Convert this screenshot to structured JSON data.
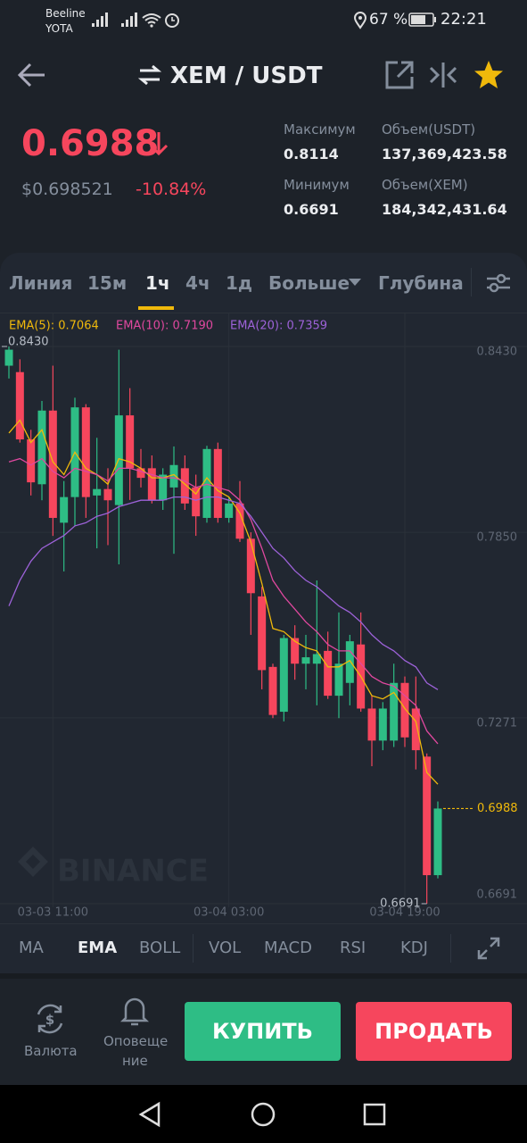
{
  "status": {
    "carrier1": "Beeline",
    "carrier2": "YOTA",
    "battery": "67 %",
    "time": "22:21"
  },
  "header": {
    "pair": "XEM / USDT"
  },
  "ticker": {
    "price": "0.6988",
    "usd": "$0.698521",
    "change": "-10.84%",
    "stats": [
      {
        "label": "Максимум",
        "value": "0.8114"
      },
      {
        "label": "Объем(USDT)",
        "value": "137,369,423.58"
      },
      {
        "label": "Минимум",
        "value": "0.6691"
      },
      {
        "label": "Объем(XEM)",
        "value": "184,342,431.64"
      }
    ]
  },
  "tabs": [
    "Линия",
    "15м",
    "1ч",
    "4ч",
    "1д",
    "Больше",
    "Глубина"
  ],
  "chart_data": {
    "type": "candlestick",
    "categories": [
      null,
      null,
      null,
      null,
      "03-03 11:00",
      null,
      null,
      null,
      null,
      null,
      null,
      null,
      null,
      null,
      null,
      null,
      null,
      null,
      null,
      null,
      "03-04 03:00",
      null,
      null,
      null,
      null,
      null,
      null,
      null,
      null,
      null,
      null,
      null,
      null,
      null,
      null,
      null,
      "03-04 19:00",
      null,
      null,
      null
    ],
    "open": [
      0.837,
      0.835,
      0.814,
      0.8,
      0.823,
      0.788,
      0.796,
      0.824,
      0.7965,
      0.7985,
      0.7935,
      0.8215,
      0.805,
      0.805,
      0.795,
      0.799,
      0.805,
      0.799,
      0.7895,
      0.811,
      0.7895,
      0.794,
      0.783,
      0.765,
      0.743,
      0.729,
      0.752,
      0.744,
      0.744,
      0.748,
      0.734,
      0.738,
      0.75,
      0.73,
      0.72,
      0.72,
      0.738,
      0.73,
      0.715,
      0.678
    ],
    "high": [
      0.843,
      0.839,
      0.817,
      0.826,
      0.837,
      0.801,
      0.827,
      0.825,
      0.8145,
      0.805,
      0.842,
      0.83,
      0.811,
      0.809,
      0.805,
      0.8118,
      0.809,
      0.803,
      0.812,
      0.813,
      0.796,
      0.801,
      0.785,
      0.768,
      0.744,
      0.753,
      0.756,
      0.753,
      0.77,
      0.754,
      0.76,
      0.753,
      0.76,
      0.734,
      0.732,
      0.744,
      0.74,
      0.74,
      0.716,
      0.701
    ],
    "low": [
      0.833,
      0.813,
      0.7965,
      0.795,
      0.7839,
      0.7728,
      0.787,
      0.7895,
      0.78,
      0.781,
      0.775,
      0.7951,
      0.799,
      0.794,
      0.792,
      0.7783,
      0.792,
      0.7839,
      0.788,
      0.788,
      0.788,
      0.782,
      0.753,
      0.736,
      0.727,
      0.726,
      0.739,
      0.736,
      0.731,
      0.733,
      0.727,
      0.731,
      0.729,
      0.712,
      0.717,
      0.718,
      0.718,
      0.711,
      0.6691,
      0.677
    ],
    "close": [
      0.842,
      0.814,
      0.8006,
      0.823,
      0.7895,
      0.796,
      0.824,
      0.796,
      0.7985,
      0.795,
      0.8215,
      0.805,
      0.802,
      0.795,
      0.803,
      0.806,
      0.794,
      0.79,
      0.811,
      0.7895,
      0.794,
      0.783,
      0.766,
      0.742,
      0.728,
      0.752,
      0.744,
      0.746,
      0.747,
      0.734,
      0.744,
      0.751,
      0.73,
      0.72,
      0.73,
      0.738,
      0.721,
      0.717,
      0.678,
      0.6988
    ],
    "up_color": "#2ebd85",
    "down_color": "#f6465d",
    "lines": [
      {
        "label": "EMA(5): 0.7064",
        "color": "#f0b90b",
        "values": [
          0.816,
          0.82,
          0.813,
          0.817,
          0.807,
          0.803,
          0.81,
          0.805,
          0.803,
          0.8,
          0.808,
          0.807,
          0.805,
          0.802,
          0.802,
          0.803,
          0.8,
          0.797,
          0.802,
          0.798,
          0.796,
          0.791,
          0.782,
          0.769,
          0.755,
          0.754,
          0.751,
          0.749,
          0.748,
          0.743,
          0.743,
          0.745,
          0.74,
          0.734,
          0.733,
          0.735,
          0.73,
          0.726,
          0.71,
          0.7064
        ]
      },
      {
        "label": "EMA(10): 0.7190",
        "color": "#e0489f",
        "values": [
          0.807,
          0.808,
          0.806,
          0.808,
          0.804,
          0.802,
          0.805,
          0.804,
          0.803,
          0.801,
          0.805,
          0.805,
          0.804,
          0.803,
          0.802,
          0.802,
          0.801,
          0.799,
          0.8,
          0.799,
          0.798,
          0.795,
          0.789,
          0.78,
          0.77,
          0.765,
          0.761,
          0.757,
          0.754,
          0.75,
          0.748,
          0.748,
          0.744,
          0.74,
          0.738,
          0.737,
          0.734,
          0.731,
          0.723,
          0.719
        ]
      },
      {
        "label": "EMA(20): 0.7359",
        "color": "#9d62d9",
        "values": [
          0.762,
          0.77,
          0.776,
          0.78,
          0.782,
          0.784,
          0.787,
          0.788,
          0.79,
          0.791,
          0.793,
          0.794,
          0.795,
          0.795,
          0.795,
          0.796,
          0.796,
          0.795,
          0.796,
          0.796,
          0.795,
          0.794,
          0.79,
          0.785,
          0.78,
          0.777,
          0.773,
          0.77,
          0.768,
          0.765,
          0.762,
          0.76,
          0.757,
          0.753,
          0.75,
          0.748,
          0.745,
          0.743,
          0.738,
          0.7359
        ]
      }
    ],
    "ylim": [
      0.6691,
      0.843
    ],
    "yticks": [
      {
        "value": 0.843,
        "label": "0.8430"
      },
      {
        "value": 0.785,
        "label": "0.7850"
      },
      0.7271,
      0.6691
    ],
    "grid": true,
    "high_marker": {
      "value": 0.843,
      "label": "0.8430"
    },
    "low_marker": 0.6691,
    "last_price": 0.6988,
    "last_price_color": "#f0b90b",
    "watermark": "BINANCE"
  },
  "indicators": [
    "MA",
    "EMA",
    "BOLL",
    "VOL",
    "MACD",
    "RSI",
    "KDJ"
  ],
  "actions": {
    "currency": "Валюта",
    "alerts_line1": "Оповеще",
    "alerts_line2": "ние",
    "buy": "КУПИТЬ",
    "sell": "ПРОДАТЬ"
  }
}
